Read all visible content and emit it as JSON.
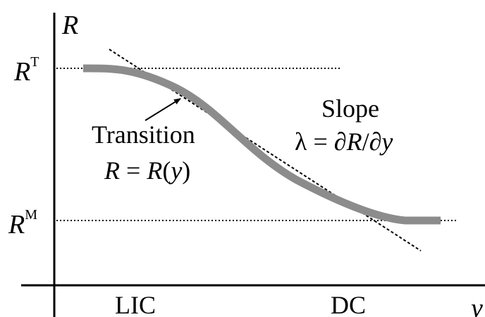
{
  "axes": {
    "y_label": "R",
    "x_label": "y",
    "y_ticks": [
      {
        "base": "R",
        "sup": "T"
      },
      {
        "base": "R",
        "sup": "M"
      }
    ],
    "x_ticks": [
      "LIC",
      "DC"
    ]
  },
  "annotations": {
    "transition_title": "Transition",
    "transition_formula": {
      "lhs": "R",
      "eq": " = ",
      "fn": "R",
      "open": "(",
      "arg": "y",
      "close": ")"
    },
    "slope_title": "Slope",
    "slope_formula": {
      "lambda": "λ",
      "eq": " = ",
      "num": "∂R",
      "slash": "/",
      "den": "∂y"
    }
  },
  "colors": {
    "curve": "#8c8c8c",
    "axes": "#000000"
  }
}
